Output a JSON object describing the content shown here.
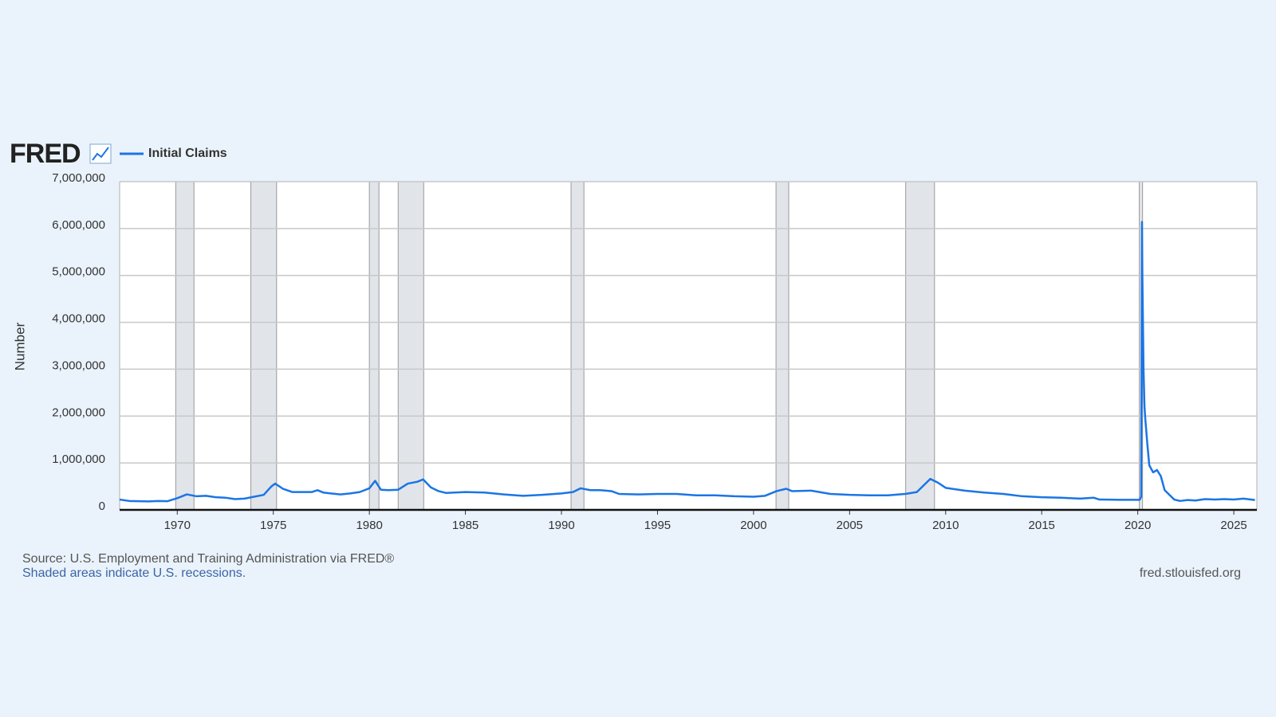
{
  "chart_data": {
    "type": "line",
    "logo": "FRED",
    "ylabel": "Number",
    "source": "Source: U.S. Employment and Training Administration via FRED®",
    "note": "Shaded areas indicate U.S. recessions.",
    "credit": "fred.stlouisfed.org",
    "xlim": [
      1967,
      2026.2
    ],
    "xticks": [
      1970,
      1975,
      1980,
      1985,
      1990,
      1995,
      2000,
      2005,
      2010,
      2015,
      2020,
      2025
    ],
    "ylim": [
      0,
      7000000
    ],
    "yticks": [
      0,
      {
        "value": 1000000,
        "label": "1,000,000"
      },
      {
        "value": 2000000,
        "label": "2,000,000"
      },
      {
        "value": 3000000,
        "label": "3,000,000"
      },
      {
        "value": 4000000,
        "label": "4,000,000"
      },
      {
        "value": 5000000,
        "label": "5,000,000"
      },
      {
        "value": 6000000,
        "label": "6,000,000"
      },
      {
        "value": 7000000,
        "label": "7,000,000"
      }
    ],
    "grid": true,
    "recessions": [
      [
        1969.92,
        1970.87
      ],
      [
        1973.83,
        1975.17
      ],
      [
        1980.0,
        1980.5
      ],
      [
        1981.5,
        1982.83
      ],
      [
        1990.5,
        1991.17
      ],
      [
        2001.17,
        2001.83
      ],
      [
        2007.92,
        2009.42
      ],
      [
        2020.08,
        2020.25
      ]
    ],
    "x": [
      1967.0,
      1967.5,
      1968.0,
      1968.5,
      1969.0,
      1969.5,
      1970.0,
      1970.5,
      1971.0,
      1971.5,
      1972.0,
      1972.5,
      1973.0,
      1973.5,
      1974.0,
      1974.5,
      1974.9,
      1975.1,
      1975.5,
      1976.0,
      1976.5,
      1977.0,
      1977.3,
      1977.6,
      1978.0,
      1978.5,
      1979.0,
      1979.5,
      1980.0,
      1980.3,
      1980.6,
      1981.0,
      1981.5,
      1982.0,
      1982.5,
      1982.8,
      1983.2,
      1983.6,
      1984.0,
      1985.0,
      1986.0,
      1987.0,
      1988.0,
      1989.0,
      1990.0,
      1990.6,
      1991.0,
      1991.5,
      1992.0,
      1992.6,
      1993.0,
      1994.0,
      1995.0,
      1996.0,
      1997.0,
      1998.0,
      1999.0,
      2000.0,
      2000.6,
      2001.2,
      2001.7,
      2002.0,
      2003.0,
      2004.0,
      2005.0,
      2006.0,
      2007.0,
      2007.9,
      2008.5,
      2009.2,
      2009.6,
      2010.0,
      2011.0,
      2012.0,
      2013.0,
      2014.0,
      2015.0,
      2016.0,
      2017.0,
      2017.7,
      2018.0,
      2019.0,
      2020.1,
      2020.18,
      2020.2,
      2020.22,
      2020.24,
      2020.27,
      2020.3,
      2020.35,
      2020.4,
      2020.5,
      2020.6,
      2020.8,
      2021.0,
      2021.2,
      2021.4,
      2021.6,
      2021.9,
      2022.2,
      2022.6,
      2023.0,
      2023.5,
      2024.0,
      2024.5,
      2025.0,
      2025.5,
      2026.1
    ],
    "series": [
      {
        "name": "Initial Claims",
        "color": "#1b75e4",
        "values": [
          220000,
          190000,
          185000,
          180000,
          190000,
          185000,
          250000,
          330000,
          290000,
          300000,
          270000,
          260000,
          230000,
          240000,
          280000,
          320000,
          500000,
          560000,
          450000,
          380000,
          380000,
          380000,
          420000,
          370000,
          350000,
          330000,
          350000,
          380000,
          460000,
          620000,
          430000,
          420000,
          430000,
          560000,
          600000,
          650000,
          480000,
          400000,
          360000,
          380000,
          370000,
          330000,
          300000,
          320000,
          350000,
          380000,
          460000,
          420000,
          420000,
          400000,
          340000,
          330000,
          340000,
          340000,
          310000,
          310000,
          290000,
          280000,
          300000,
          400000,
          450000,
          400000,
          410000,
          340000,
          320000,
          310000,
          310000,
          340000,
          380000,
          660000,
          580000,
          470000,
          410000,
          370000,
          340000,
          290000,
          270000,
          260000,
          240000,
          260000,
          220000,
          215000,
          215000,
          280000,
          2900000,
          6140000,
          5000000,
          4000000,
          3000000,
          2200000,
          1900000,
          1400000,
          950000,
          800000,
          850000,
          720000,
          420000,
          340000,
          220000,
          190000,
          210000,
          200000,
          230000,
          220000,
          230000,
          220000,
          240000,
          210000
        ]
      }
    ]
  }
}
